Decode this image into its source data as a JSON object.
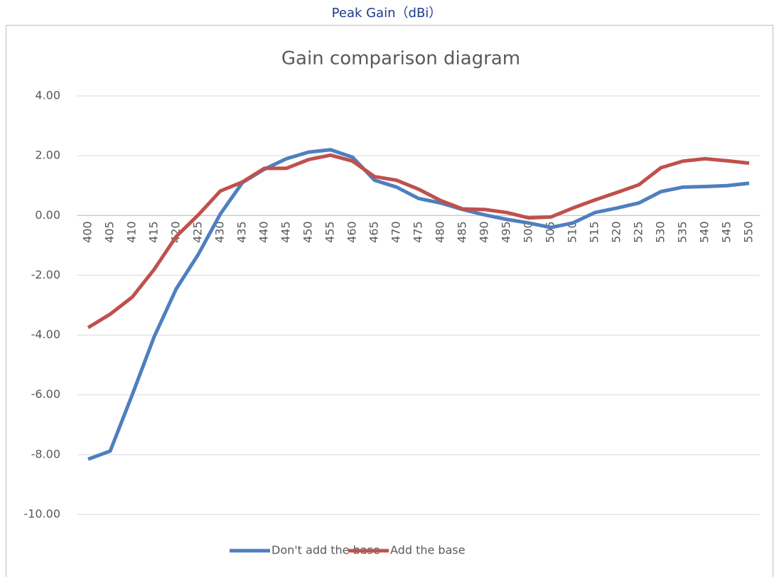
{
  "header": "Peak Gain（dBi）",
  "chart_data": {
    "type": "line",
    "title": "Gain comparison diagram",
    "categories": [
      "400",
      "405",
      "410",
      "415",
      "420",
      "425",
      "430",
      "435",
      "440",
      "445",
      "450",
      "455",
      "460",
      "465",
      "470",
      "475",
      "480",
      "485",
      "490",
      "495",
      "500",
      "505",
      "510",
      "515",
      "520",
      "525",
      "530",
      "535",
      "540",
      "545",
      "550"
    ],
    "series": [
      {
        "name": "Don't add the base",
        "color": "#4e7fbf",
        "values": [
          -8.15,
          -7.88,
          -6.0,
          -4.05,
          -2.45,
          -1.3,
          0.05,
          1.1,
          1.55,
          1.9,
          2.12,
          2.2,
          1.95,
          1.18,
          0.95,
          0.57,
          0.42,
          0.2,
          0.02,
          -0.13,
          -0.25,
          -0.4,
          -0.25,
          0.1,
          0.25,
          0.42,
          0.8,
          0.95,
          0.97,
          1.0,
          1.08
        ]
      },
      {
        "name": "Add the base",
        "color": "#c0504d",
        "values": [
          -3.75,
          -3.3,
          -2.73,
          -1.8,
          -0.7,
          0.02,
          0.82,
          1.12,
          1.58,
          1.58,
          1.87,
          2.02,
          1.82,
          1.3,
          1.18,
          0.88,
          0.5,
          0.22,
          0.2,
          0.1,
          -0.08,
          -0.05,
          0.25,
          0.52,
          0.77,
          1.03,
          1.6,
          1.82,
          1.9,
          1.83,
          1.75
        ]
      }
    ],
    "ylim": [
      -10,
      4
    ],
    "yticks": [
      {
        "value": -10,
        "label": "-10.00"
      },
      {
        "value": -8,
        "label": "-8.00"
      },
      {
        "value": -6,
        "label": "-6.00"
      },
      {
        "value": -4,
        "label": "-4.00"
      },
      {
        "value": -2,
        "label": "-2.00"
      },
      {
        "value": 0,
        "label": "0.00"
      },
      {
        "value": 2,
        "label": "2.00"
      },
      {
        "value": 4,
        "label": "4.00"
      }
    ],
    "grid": true,
    "legend": "bottom"
  }
}
